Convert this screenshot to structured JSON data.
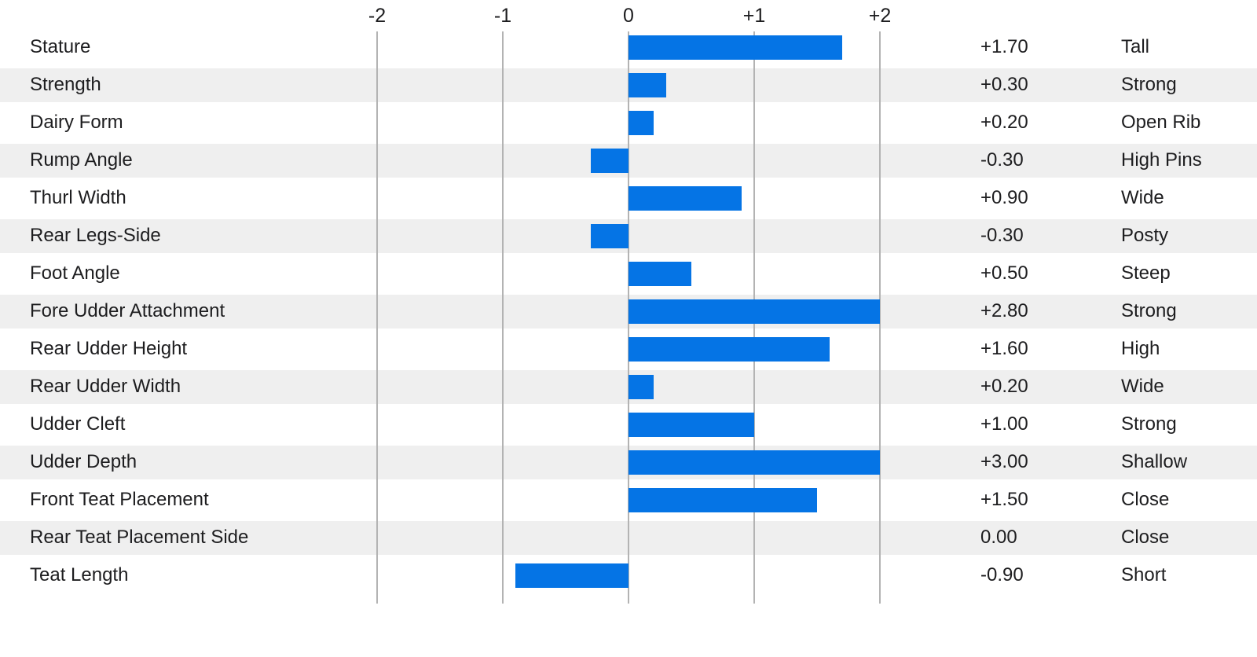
{
  "chart_data": {
    "type": "bar",
    "orientation": "horizontal",
    "title": "",
    "xlabel": "",
    "ylabel": "",
    "axis": {
      "min": -2,
      "max": 2,
      "grid": true,
      "ticks": [
        {
          "value": -2,
          "label": "-2"
        },
        {
          "value": -1,
          "label": "-1"
        },
        {
          "value": 0,
          "label": "0"
        },
        {
          "value": 1,
          "label": "+1"
        },
        {
          "value": 2,
          "label": "+2"
        }
      ]
    },
    "note_bars_clipped_at_axis_max": true,
    "rows": [
      {
        "trait": "Stature",
        "value": 1.7,
        "value_label": "+1.70",
        "descriptor": "Tall"
      },
      {
        "trait": "Strength",
        "value": 0.3,
        "value_label": "+0.30",
        "descriptor": "Strong"
      },
      {
        "trait": "Dairy Form",
        "value": 0.2,
        "value_label": "+0.20",
        "descriptor": "Open Rib"
      },
      {
        "trait": "Rump Angle",
        "value": -0.3,
        "value_label": "-0.30",
        "descriptor": "High Pins"
      },
      {
        "trait": "Thurl Width",
        "value": 0.9,
        "value_label": "+0.90",
        "descriptor": "Wide"
      },
      {
        "trait": "Rear Legs-Side",
        "value": -0.3,
        "value_label": "-0.30",
        "descriptor": "Posty"
      },
      {
        "trait": "Foot Angle",
        "value": 0.5,
        "value_label": "+0.50",
        "descriptor": "Steep"
      },
      {
        "trait": "Fore Udder Attachment",
        "value": 2.8,
        "value_label": "+2.80",
        "descriptor": "Strong"
      },
      {
        "trait": "Rear Udder Height",
        "value": 1.6,
        "value_label": "+1.60",
        "descriptor": "High"
      },
      {
        "trait": "Rear Udder Width",
        "value": 0.2,
        "value_label": "+0.20",
        "descriptor": "Wide"
      },
      {
        "trait": "Udder Cleft",
        "value": 1.0,
        "value_label": "+1.00",
        "descriptor": "Strong"
      },
      {
        "trait": "Udder Depth",
        "value": 3.0,
        "value_label": "+3.00",
        "descriptor": "Shallow"
      },
      {
        "trait": "Front Teat Placement",
        "value": 1.5,
        "value_label": "+1.50",
        "descriptor": "Close"
      },
      {
        "trait": "Rear Teat Placement Side",
        "value": 0.0,
        "value_label": "0.00",
        "descriptor": "Close"
      },
      {
        "trait": "Teat Length",
        "value": -0.9,
        "value_label": "-0.90",
        "descriptor": "Short"
      }
    ],
    "colors": {
      "bar": "#0574e5",
      "row_stripe": "#efefef",
      "gridline": "#b3b3b3",
      "text": "#1d1d1f",
      "background": "#ffffff"
    }
  }
}
